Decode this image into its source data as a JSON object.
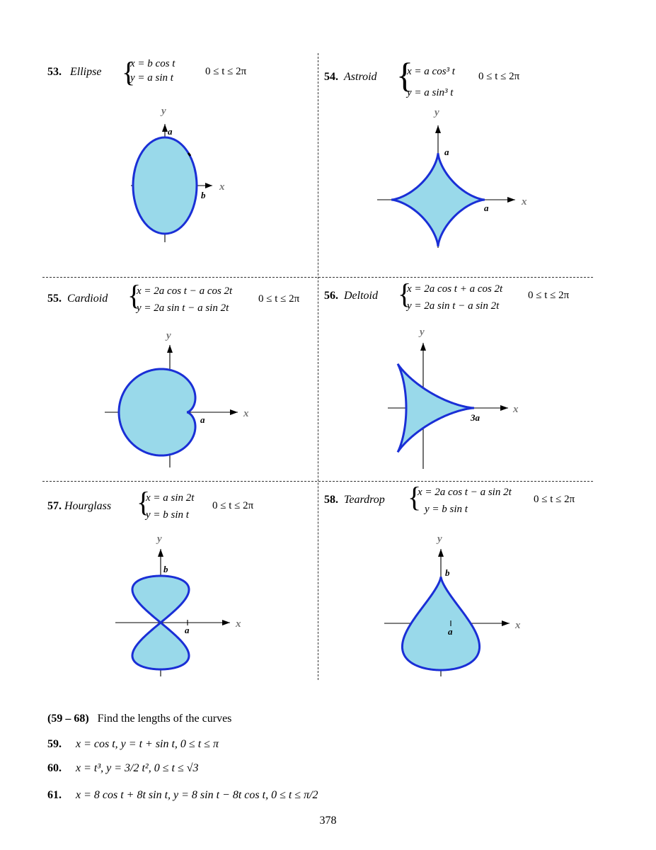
{
  "problems": [
    {
      "num": "53.",
      "name": "Ellipse",
      "eq1": "x = b cos t",
      "eq2": "y = a sin t",
      "range": "0 ≤ t ≤ 2π",
      "xlabel": "x",
      "ylabel": "y",
      "ticks": [
        "a",
        "b"
      ]
    },
    {
      "num": "54.",
      "name": "Astroid",
      "eq1": "x = a cos³ t",
      "eq2": "y = a sin³ t",
      "range": "0 ≤ t ≤ 2π",
      "xlabel": "x",
      "ylabel": "y",
      "ticks": [
        "a",
        "a"
      ]
    },
    {
      "num": "55.",
      "name": "Cardioid",
      "eq1": "x = 2a cos t − a cos 2t",
      "eq2": "y = 2a sin t − a sin 2t",
      "range": "0 ≤ t ≤ 2π",
      "xlabel": "x",
      "ylabel": "y",
      "ticks": [
        "a"
      ]
    },
    {
      "num": "56.",
      "name": "Deltoid",
      "eq1": "x = 2a cos t + a cos 2t",
      "eq2": "y = 2a sin t − a sin 2t",
      "range": "0 ≤ t ≤ 2π",
      "xlabel": "x",
      "ylabel": "y",
      "ticks": [
        "3a"
      ]
    },
    {
      "num": "57.",
      "name": "Hourglass",
      "eq1": "x = a sin 2t",
      "eq2": "y = b sin t",
      "range": "0 ≤ t ≤ 2π",
      "xlabel": "x",
      "ylabel": "y",
      "ticks": [
        "b",
        "a"
      ]
    },
    {
      "num": "58.",
      "name": "Teardrop",
      "eq1": "x = 2a cos t − a sin 2t",
      "eq2": "y = b sin t",
      "range": "0 ≤ t ≤ 2π",
      "xlabel": "x",
      "ylabel": "y",
      "ticks": [
        "b",
        "a"
      ]
    }
  ],
  "section": {
    "range": "(59 – 68)",
    "text": "Find the lengths of the curves"
  },
  "exercises": [
    {
      "num": "59.",
      "text": "x = cos t,   y = t + sin t,   0 ≤ t ≤ π"
    },
    {
      "num": "60.",
      "text": "x = t³,   y = 3/2 t²,   0 ≤ t ≤ √3"
    },
    {
      "num": "61.",
      "text": "x = 8 cos t + 8t sin t,   y = 8 sin t − 8t cos t,   0 ≤ t ≤ π/2"
    }
  ],
  "page_number": "378",
  "colors": {
    "fill": "#99d9ea",
    "stroke": "#1a2fd6"
  }
}
